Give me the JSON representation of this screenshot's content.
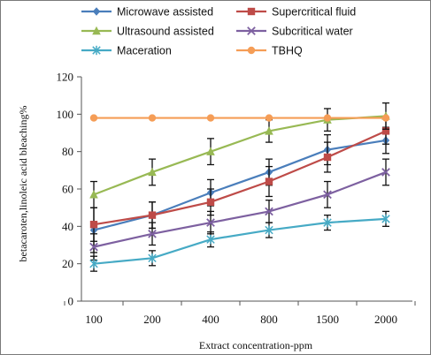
{
  "chart_data": {
    "type": "line",
    "title": "",
    "xlabel": "Extract concentration-ppm",
    "ylabel": "betacaroten,linoleic acid bleaching%",
    "categories": [
      "100",
      "200",
      "400",
      "800",
      "1500",
      "2000"
    ],
    "ylim": [
      0,
      120
    ],
    "yticks": [
      0,
      20,
      40,
      60,
      80,
      100,
      120
    ],
    "grid": false,
    "legend_position": "top",
    "series": [
      {
        "name": "Microwave assisted",
        "color": "#4a7ebb",
        "marker": "diamond",
        "values": [
          38,
          46,
          58,
          69,
          81,
          86
        ],
        "errors": [
          12,
          7,
          7,
          7,
          8,
          7
        ]
      },
      {
        "name": "Supercritical fluid",
        "color": "#be4b48",
        "marker": "square",
        "values": [
          41,
          46,
          53,
          64,
          77,
          91
        ],
        "errors": [
          9,
          7,
          7,
          8,
          8,
          7
        ]
      },
      {
        "name": "Ultrasound assisted",
        "color": "#98b954",
        "marker": "triangle",
        "values": [
          57,
          69,
          80,
          91,
          97,
          99
        ],
        "errors": [
          7,
          7,
          7,
          6,
          6,
          7
        ]
      },
      {
        "name": "Subcritical water",
        "color": "#7d60a0",
        "marker": "x",
        "values": [
          29,
          36,
          42,
          48,
          57,
          69
        ],
        "errors": [
          7,
          6,
          6,
          6,
          7,
          7
        ]
      },
      {
        "name": "Maceration",
        "color": "#46aac5",
        "marker": "star",
        "values": [
          20,
          23,
          33,
          38,
          42,
          44
        ],
        "errors": [
          4,
          4,
          4,
          4,
          4,
          4
        ]
      },
      {
        "name": "TBHQ",
        "color": "#f59d56",
        "marker": "circle",
        "values": [
          98,
          98,
          98,
          98,
          98,
          98
        ],
        "errors": [
          0,
          0,
          0,
          0,
          0,
          0
        ]
      }
    ]
  }
}
